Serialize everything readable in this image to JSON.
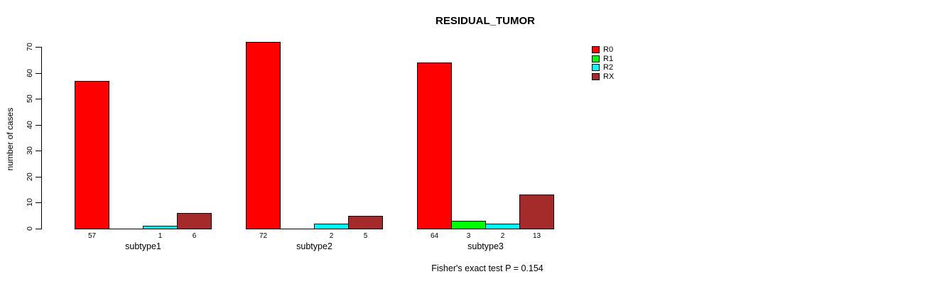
{
  "chart_data": {
    "type": "bar",
    "title": "RESIDUAL_TUMOR",
    "ylabel": "number of cases",
    "xlabel": "",
    "ylim": [
      0,
      70
    ],
    "yticks": [
      0,
      10,
      20,
      30,
      40,
      50,
      60,
      70
    ],
    "grid": false,
    "legend_position": "right",
    "categories": [
      "subtype1",
      "subtype2",
      "subtype3"
    ],
    "series": [
      {
        "name": "R0",
        "color": "#FF0000",
        "values": [
          57,
          72,
          64
        ]
      },
      {
        "name": "R1",
        "color": "#00FF00",
        "values": [
          0,
          0,
          3
        ]
      },
      {
        "name": "R2",
        "color": "#00FFFF",
        "values": [
          1,
          2,
          2
        ]
      },
      {
        "name": "RX",
        "color": "#A52A2A",
        "values": [
          6,
          5,
          13
        ]
      }
    ],
    "bar_value_labels": {
      "subtype1": [
        "57",
        "",
        "1",
        "6"
      ],
      "subtype2": [
        "72",
        "",
        "2",
        "5"
      ],
      "subtype3": [
        "64",
        "3",
        "2",
        "13"
      ]
    },
    "footnote": "Fisher's exact test P = 0.154",
    "axis_color": "#000000",
    "bar_border_color": "#000000"
  }
}
